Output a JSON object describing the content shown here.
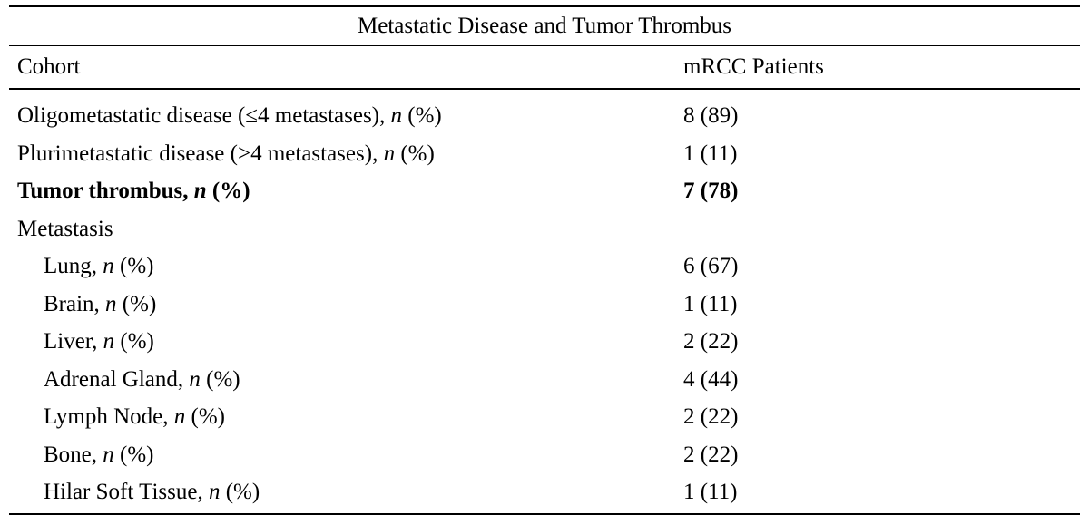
{
  "table": {
    "title": "Metastatic Disease and Tumor Thrombus",
    "headers": {
      "cohort": "Cohort",
      "patients": "mRCC Patients"
    },
    "rows": [
      {
        "label": "Oligometastatic disease (≤4 metastases), ",
        "n": "n",
        "suffix": " (%)",
        "value": "8 (89)"
      },
      {
        "label": "Plurimetastatic disease (>4 metastases), ",
        "n": "n",
        "suffix": " (%)",
        "value": "1 (11)"
      },
      {
        "label": "Tumor thrombus, ",
        "n": "n",
        "suffix": " (%)",
        "value": "7 (78)"
      },
      {
        "label": "Metastasis",
        "n": "",
        "suffix": "",
        "value": ""
      },
      {
        "label": "Lung, ",
        "n": "n",
        "suffix": " (%)",
        "value": "6 (67)"
      },
      {
        "label": "Brain, ",
        "n": "n",
        "suffix": " (%)",
        "value": "1 (11)"
      },
      {
        "label": "Liver, ",
        "n": "n",
        "suffix": " (%)",
        "value": "2 (22)"
      },
      {
        "label": "Adrenal Gland, ",
        "n": "n",
        "suffix": " (%)",
        "value": "4 (44)"
      },
      {
        "label": "Lymph Node, ",
        "n": "n",
        "suffix": " (%)",
        "value": "2 (22)"
      },
      {
        "label": "Bone, ",
        "n": "n",
        "suffix": " (%)",
        "value": "2 (22)"
      },
      {
        "label": "Hilar Soft Tissue, ",
        "n": "n",
        "suffix": " (%)",
        "value": "1 (11)"
      }
    ]
  }
}
